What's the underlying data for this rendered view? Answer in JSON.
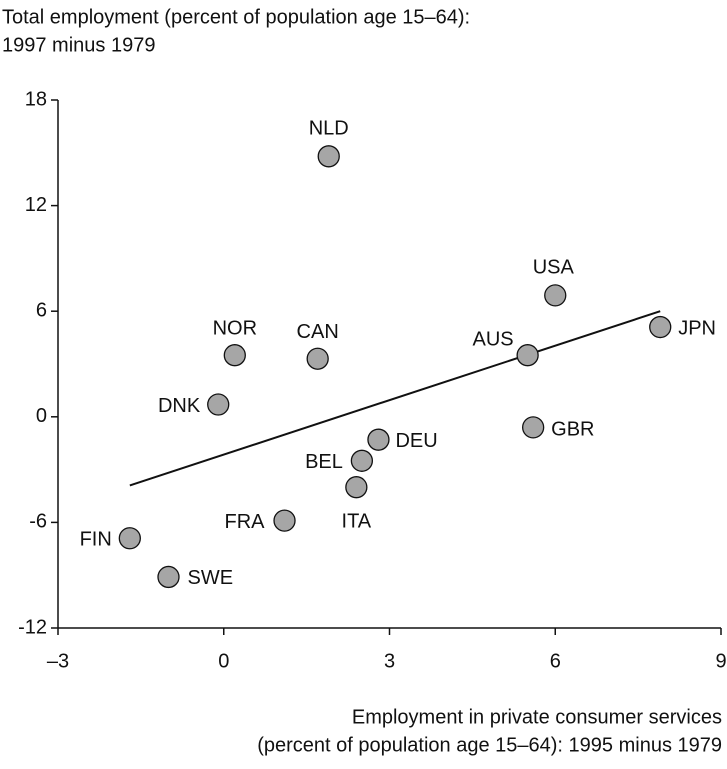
{
  "chart_data": {
    "type": "scatter",
    "title": [
      "Total employment (percent of population age 15–64):",
      "1997 minus 1979"
    ],
    "x_label": [
      "Employment in private consumer services",
      "(percent of population age 15–64): 1995 minus 1979"
    ],
    "categories": [
      "NLD",
      "USA",
      "JPN",
      "AUS",
      "NOR",
      "CAN",
      "DNK",
      "GBR",
      "DEU",
      "BEL",
      "ITA",
      "FRA",
      "FIN",
      "SWE"
    ],
    "x": [
      1.9,
      6.0,
      7.9,
      5.5,
      0.2,
      1.7,
      -0.1,
      5.6,
      2.8,
      2.5,
      2.4,
      1.1,
      -1.7,
      -1.0
    ],
    "values": [
      14.8,
      6.9,
      5.1,
      3.5,
      3.5,
      3.3,
      0.7,
      -0.6,
      -1.3,
      -2.5,
      -4.0,
      -5.9,
      -6.9,
      -9.1
    ],
    "color": "#a6a6a6",
    "trend": {
      "x": [
        -1.7,
        7.9
      ],
      "y": [
        -3.9,
        6.0
      ]
    },
    "xlim": [
      -3,
      9
    ],
    "xticks": [
      {
        "value": -3,
        "label": "–3"
      },
      0,
      3,
      6,
      9
    ],
    "ylim": [
      -12,
      18
    ],
    "yticks": [
      -12,
      -6,
      0,
      6,
      12,
      18
    ]
  }
}
